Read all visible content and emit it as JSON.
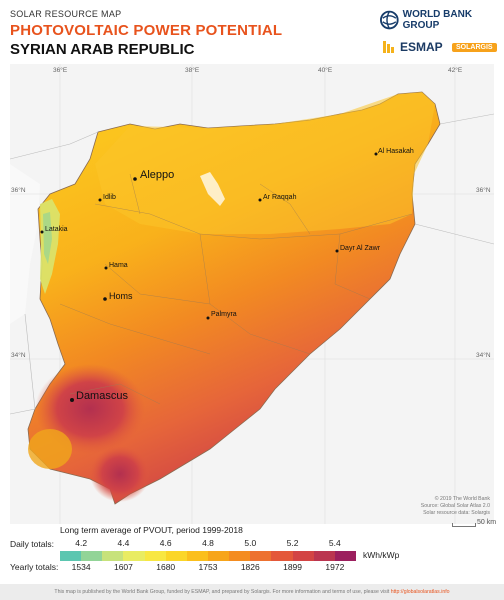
{
  "header": {
    "overline": "SOLAR RESOURCE MAP",
    "title": "PHOTOVOLTAIC POWER POTENTIAL",
    "country": "SYRIAN ARAB REPUBLIC",
    "wb_name": "WORLD BANK GROUP",
    "esmap": "ESMAP",
    "solargis": "SOLARGIS"
  },
  "map": {
    "lon_labels": [
      "36°E",
      "38°E",
      "40°E",
      "42°E"
    ],
    "lat_labels": [
      "36°N",
      "34°N"
    ],
    "cities": [
      {
        "name": "Aleppo",
        "major": true
      },
      {
        "name": "Idlib",
        "major": false
      },
      {
        "name": "Latakia",
        "major": false
      },
      {
        "name": "Hama",
        "major": false
      },
      {
        "name": "Homs",
        "major": true
      },
      {
        "name": "Palmyra",
        "major": false
      },
      {
        "name": "Damascus",
        "major": true
      },
      {
        "name": "Ar Raqqah",
        "major": false
      },
      {
        "name": "Dayr Al Zawr",
        "major": false
      },
      {
        "name": "Al Hasakah",
        "major": false
      }
    ],
    "copyright": [
      "© 2019 The World Bank",
      "Source: Global Solar Atlas 2.0",
      "Solar resource data: Solargis"
    ],
    "scale_label": "50 km"
  },
  "legend": {
    "title": "Long term average of PVOUT, period 1999-2018",
    "daily_label": "Daily totals:",
    "yearly_label": "Yearly totals:",
    "daily_ticks": [
      "4.2",
      "4.4",
      "4.6",
      "4.8",
      "5.0",
      "5.2",
      "5.4"
    ],
    "yearly_ticks": [
      "1534",
      "1607",
      "1680",
      "1753",
      "1826",
      "1899",
      "1972"
    ],
    "unit": "kWh/kWp",
    "colors": [
      "#5bc6b0",
      "#92d497",
      "#c7e27b",
      "#e9ec62",
      "#f8e742",
      "#fbd628",
      "#fbbf1c",
      "#f7a51a",
      "#f48c20",
      "#ed7130",
      "#e4583a",
      "#d34444",
      "#bb3550",
      "#9c1f5e"
    ]
  },
  "footer": {
    "text": "This map is published by the World Bank Group, funded by ESMAP, and prepared by Solargis. For more information and terms of use, please visit",
    "link": "http://globalsolaratlas.info"
  }
}
